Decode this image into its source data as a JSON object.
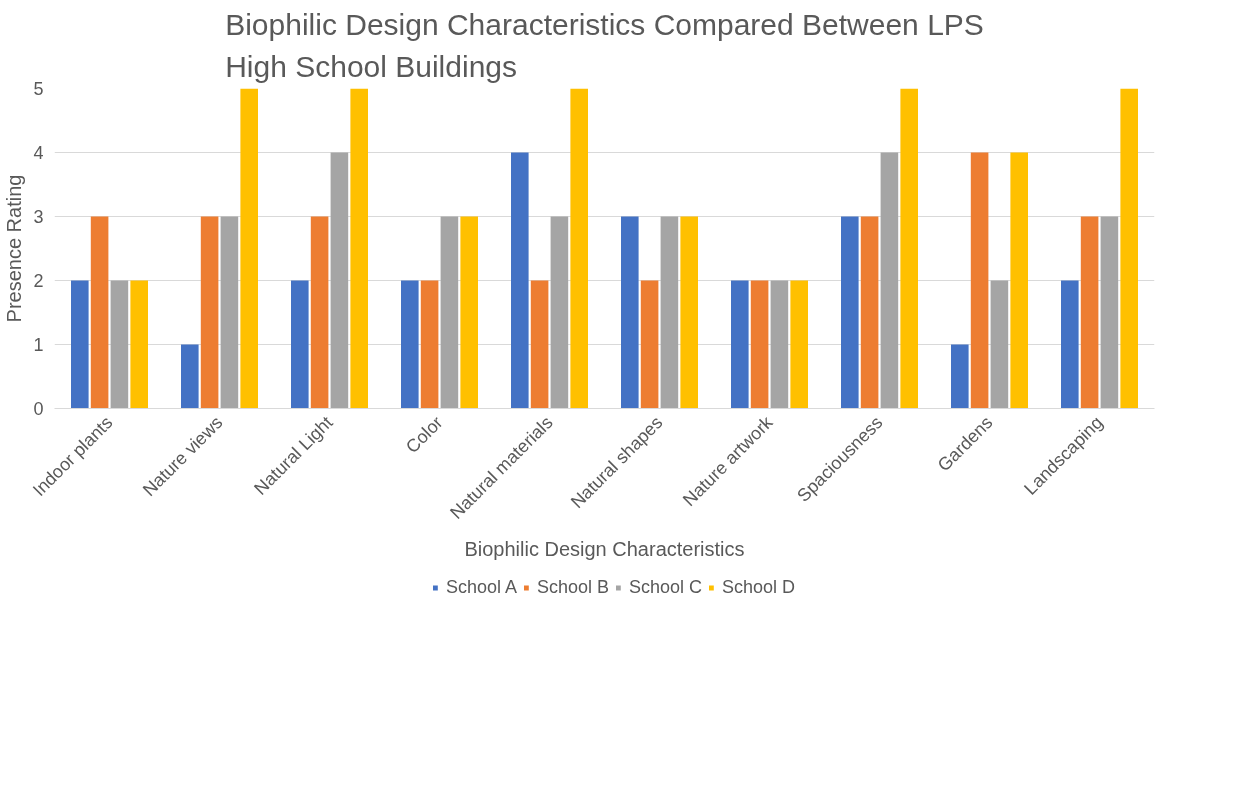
{
  "chart_data": {
    "type": "bar",
    "title": "Biophilic Design Characteristics Compared Between LPS High School Buildings",
    "xlabel": "Biophilic Design Characteristics",
    "ylabel": "Presence Rating",
    "categories": [
      "Indoor plants",
      "Nature views",
      "Natural Light",
      "Color",
      "Natural materials",
      "Natural shapes",
      "Nature artwork",
      "Spaciousness",
      "Gardens",
      "Landscaping"
    ],
    "series": [
      {
        "name": "School A",
        "color": "#4472c4",
        "values": [
          2,
          1,
          2,
          2,
          4,
          3,
          2,
          3,
          1,
          2
        ]
      },
      {
        "name": "School B",
        "color": "#ed7d31",
        "values": [
          3,
          3,
          3,
          2,
          2,
          2,
          2,
          3,
          4,
          3
        ]
      },
      {
        "name": "School C",
        "color": "#a5a5a5",
        "values": [
          2,
          3,
          4,
          3,
          3,
          3,
          2,
          4,
          2,
          3
        ]
      },
      {
        "name": "School D",
        "color": "#ffc000",
        "values": [
          2,
          5,
          5,
          3,
          5,
          3,
          2,
          5,
          4,
          5
        ]
      }
    ],
    "ylim": [
      0,
      5
    ],
    "yticks": [
      0,
      1,
      2,
      3,
      4,
      5
    ],
    "grid": "y",
    "legend": "bottom"
  }
}
